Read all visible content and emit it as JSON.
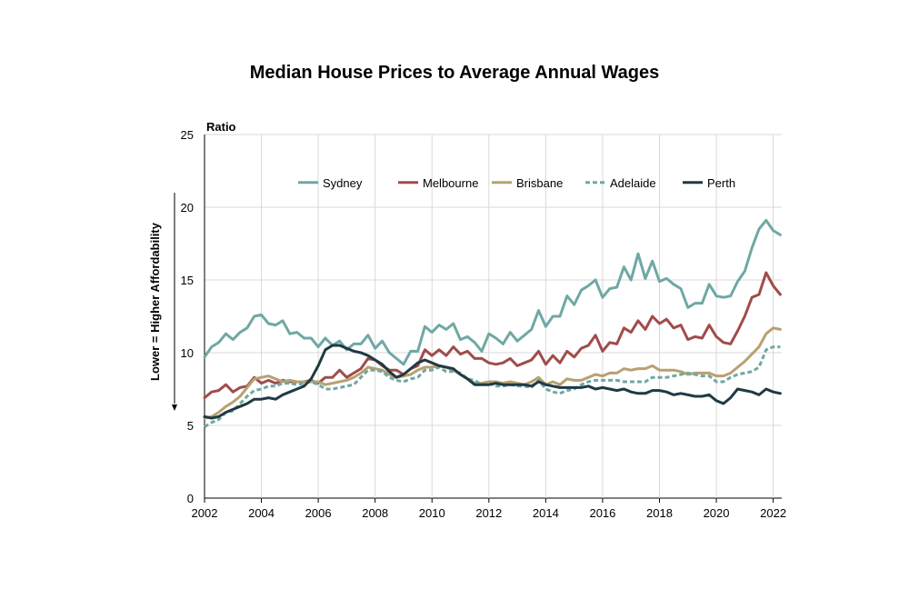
{
  "chart_data": {
    "type": "line",
    "title": "Median House Prices to Average Annual Wages",
    "ylabel": "Ratio",
    "y_side_label": "Lower = Higher Affordability",
    "ylim": [
      0,
      25
    ],
    "yticks": [
      0,
      5,
      10,
      15,
      20,
      25
    ],
    "xlim": [
      2002,
      2022.3
    ],
    "xticks": [
      2002,
      2004,
      2006,
      2008,
      2010,
      2012,
      2014,
      2016,
      2018,
      2020,
      2022
    ],
    "grid": true,
    "legend_position": "top",
    "x": [
      2002.0,
      2002.25,
      2002.5,
      2002.75,
      2003.0,
      2003.25,
      2003.5,
      2003.75,
      2004.0,
      2004.25,
      2004.5,
      2004.75,
      2005.0,
      2005.25,
      2005.5,
      2005.75,
      2006.0,
      2006.25,
      2006.5,
      2006.75,
      2007.0,
      2007.25,
      2007.5,
      2007.75,
      2008.0,
      2008.25,
      2008.5,
      2008.75,
      2009.0,
      2009.25,
      2009.5,
      2009.75,
      2010.0,
      2010.25,
      2010.5,
      2010.75,
      2011.0,
      2011.25,
      2011.5,
      2011.75,
      2012.0,
      2012.25,
      2012.5,
      2012.75,
      2013.0,
      2013.25,
      2013.5,
      2013.75,
      2014.0,
      2014.25,
      2014.5,
      2014.75,
      2015.0,
      2015.25,
      2015.5,
      2015.75,
      2016.0,
      2016.25,
      2016.5,
      2016.75,
      2017.0,
      2017.25,
      2017.5,
      2017.75,
      2018.0,
      2018.25,
      2018.5,
      2018.75,
      2019.0,
      2019.25,
      2019.5,
      2019.75,
      2020.0,
      2020.25,
      2020.5,
      2020.75,
      2021.0,
      2021.25,
      2021.5,
      2021.75,
      2022.0,
      2022.25
    ],
    "series": [
      {
        "name": "Sydney",
        "color": "#6fa8a4",
        "dash": false,
        "values": [
          9.7,
          10.4,
          10.7,
          11.3,
          10.9,
          11.4,
          11.7,
          12.5,
          12.6,
          12.0,
          11.9,
          12.2,
          11.3,
          11.4,
          11.0,
          11.0,
          10.4,
          11.0,
          10.5,
          10.8,
          10.2,
          10.6,
          10.6,
          11.2,
          10.3,
          10.8,
          10.0,
          9.6,
          9.2,
          10.1,
          10.1,
          11.8,
          11.4,
          11.9,
          11.6,
          12.0,
          10.9,
          11.1,
          10.7,
          10.1,
          11.3,
          11.0,
          10.6,
          11.4,
          10.8,
          11.2,
          11.6,
          12.9,
          11.8,
          12.5,
          12.5,
          13.9,
          13.3,
          14.3,
          14.6,
          15.0,
          13.8,
          14.4,
          14.5,
          15.9,
          15.0,
          16.8,
          15.1,
          16.3,
          14.9,
          15.1,
          14.7,
          14.4,
          13.1,
          13.4,
          13.4,
          14.7,
          13.9,
          13.8,
          13.9,
          14.9,
          15.6,
          17.2,
          18.5,
          19.1,
          18.4,
          18.1
        ]
      },
      {
        "name": "Melbourne",
        "color": "#a04c4b",
        "dash": false,
        "values": [
          6.9,
          7.3,
          7.4,
          7.8,
          7.3,
          7.6,
          7.7,
          8.3,
          7.9,
          8.1,
          7.9,
          8.1,
          8.0,
          8.0,
          8.0,
          8.1,
          7.9,
          8.3,
          8.3,
          8.8,
          8.3,
          8.6,
          8.9,
          9.6,
          9.5,
          9.1,
          8.8,
          8.8,
          8.5,
          8.9,
          9.1,
          10.2,
          9.8,
          10.2,
          9.8,
          10.4,
          9.9,
          10.1,
          9.6,
          9.6,
          9.3,
          9.2,
          9.3,
          9.6,
          9.1,
          9.3,
          9.5,
          10.1,
          9.2,
          9.8,
          9.3,
          10.1,
          9.7,
          10.3,
          10.5,
          11.2,
          10.1,
          10.7,
          10.6,
          11.7,
          11.4,
          12.2,
          11.6,
          12.5,
          12.0,
          12.3,
          11.7,
          11.9,
          10.9,
          11.1,
          11.0,
          11.9,
          11.1,
          10.7,
          10.6,
          11.5,
          12.5,
          13.8,
          14.0,
          15.5,
          14.6,
          14.0
        ]
      },
      {
        "name": "Brisbane",
        "color": "#b8a171",
        "dash": false,
        "values": [
          5.5,
          5.6,
          5.9,
          6.3,
          6.6,
          7.0,
          7.6,
          8.2,
          8.3,
          8.4,
          8.2,
          8.0,
          8.1,
          8.0,
          8.0,
          8.0,
          8.0,
          7.8,
          7.9,
          8.0,
          8.1,
          8.3,
          8.6,
          9.0,
          8.9,
          8.8,
          8.5,
          8.3,
          8.4,
          8.5,
          8.8,
          9.0,
          9.0,
          9.1,
          9.0,
          8.8,
          8.5,
          8.2,
          7.9,
          7.9,
          8.0,
          8.0,
          7.9,
          8.0,
          7.9,
          7.8,
          8.0,
          8.3,
          7.8,
          8.0,
          7.8,
          8.2,
          8.1,
          8.1,
          8.3,
          8.5,
          8.4,
          8.6,
          8.6,
          8.9,
          8.8,
          8.9,
          8.9,
          9.1,
          8.8,
          8.8,
          8.8,
          8.7,
          8.5,
          8.6,
          8.6,
          8.6,
          8.4,
          8.4,
          8.6,
          9.0,
          9.4,
          9.9,
          10.4,
          11.3,
          11.7,
          11.6
        ]
      },
      {
        "name": "Adelaide",
        "color": "#6fa8a4",
        "dash": true,
        "values": [
          4.9,
          5.2,
          5.4,
          5.9,
          6.0,
          6.5,
          7.0,
          7.4,
          7.5,
          7.7,
          7.7,
          7.9,
          7.9,
          7.8,
          7.9,
          8.0,
          7.8,
          7.5,
          7.5,
          7.6,
          7.7,
          7.8,
          8.3,
          8.8,
          8.8,
          8.7,
          8.3,
          8.1,
          8.0,
          8.2,
          8.3,
          8.8,
          8.8,
          9.0,
          8.7,
          8.7,
          8.6,
          8.2,
          8.1,
          7.8,
          7.9,
          7.7,
          7.7,
          7.8,
          7.7,
          7.7,
          7.6,
          8.1,
          7.5,
          7.3,
          7.2,
          7.4,
          7.5,
          7.8,
          8.0,
          8.1,
          8.1,
          8.1,
          8.1,
          8.0,
          8.0,
          8.0,
          8.0,
          8.3,
          8.3,
          8.3,
          8.4,
          8.5,
          8.6,
          8.5,
          8.4,
          8.4,
          8.0,
          8.0,
          8.3,
          8.5,
          8.6,
          8.7,
          9.0,
          10.2,
          10.4,
          10.4
        ]
      },
      {
        "name": "Perth",
        "color": "#1f3a44",
        "dash": false,
        "values": [
          5.6,
          5.5,
          5.6,
          5.9,
          6.1,
          6.3,
          6.5,
          6.8,
          6.8,
          6.9,
          6.8,
          7.1,
          7.3,
          7.5,
          7.7,
          8.2,
          9.1,
          10.2,
          10.5,
          10.5,
          10.3,
          10.1,
          10.0,
          9.8,
          9.5,
          9.2,
          8.7,
          8.3,
          8.5,
          8.9,
          9.3,
          9.5,
          9.3,
          9.1,
          9.0,
          8.9,
          8.5,
          8.2,
          7.8,
          7.8,
          7.8,
          7.9,
          7.8,
          7.8,
          7.8,
          7.8,
          7.7,
          8.0,
          7.8,
          7.7,
          7.6,
          7.6,
          7.6,
          7.6,
          7.7,
          7.5,
          7.6,
          7.5,
          7.4,
          7.5,
          7.3,
          7.2,
          7.2,
          7.4,
          7.4,
          7.3,
          7.1,
          7.2,
          7.1,
          7.0,
          7.0,
          7.1,
          6.7,
          6.5,
          6.9,
          7.5,
          7.4,
          7.3,
          7.1,
          7.5,
          7.3,
          7.2
        ]
      }
    ]
  }
}
